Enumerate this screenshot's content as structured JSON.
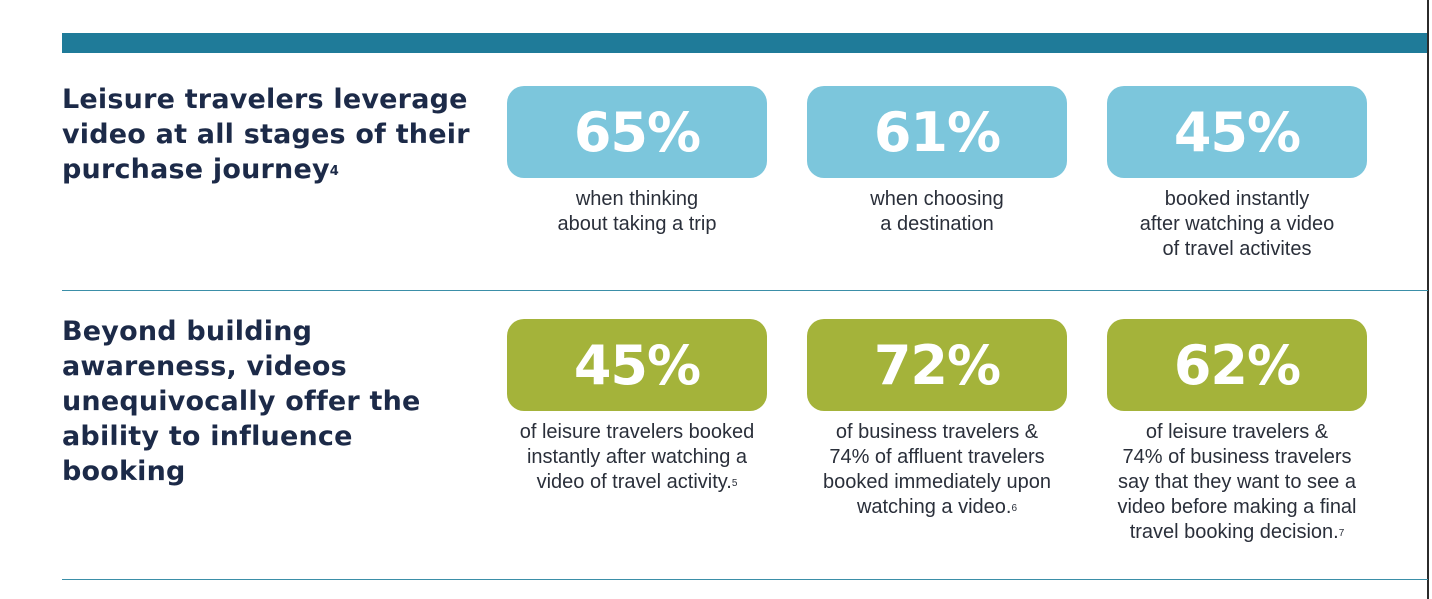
{
  "sections": [
    {
      "heading": "Leisure travelers leverage video at all stages of their purchase journey",
      "heading_note": "4",
      "accent_color": "#7cc6dc",
      "stats": [
        {
          "value": "65%",
          "caption": "when thinking\nabout taking a trip",
          "note": ""
        },
        {
          "value": "61%",
          "caption": "when choosing\na destination",
          "note": ""
        },
        {
          "value": "45%",
          "caption": "booked instantly\nafter watching a video\nof travel activites",
          "note": ""
        }
      ]
    },
    {
      "heading": "Beyond building awareness, videos unequivocally offer the ability to influence booking",
      "heading_note": "",
      "accent_color": "#a4b33a",
      "stats": [
        {
          "value": "45%",
          "caption": "of leisure travelers booked\ninstantly after watching a\nvideo of travel activity.",
          "note": "5"
        },
        {
          "value": "72%",
          "caption": "of business travelers &\n74% of affluent travelers\nbooked immediately upon\nwatching a video.",
          "note": "6"
        },
        {
          "value": "62%",
          "caption": "of leisure travelers &\n74% of business travelers\nsay that they want to see a\nvideo before making a final\ntravel booking decision.",
          "note": "7"
        }
      ]
    }
  ],
  "colors": {
    "top_bar": "#1f7b99",
    "heading_text": "#1c2a48",
    "divider": "#3b8fa8"
  }
}
